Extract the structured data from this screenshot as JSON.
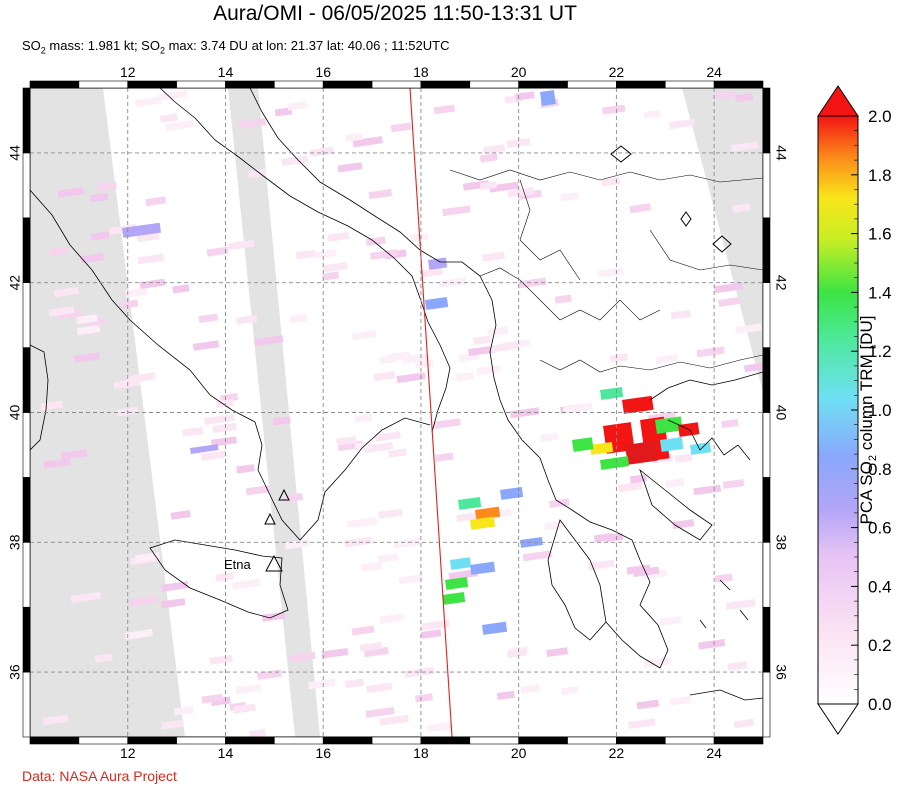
{
  "header": {
    "title": "Aura/OMI - 06/05/2025 11:50-13:31 UT",
    "subtitle_pre": "SO",
    "subtitle_sub": "2",
    "subtitle_mid": " mass: 1.981 kt; SO",
    "subtitle_sub2": "2",
    "subtitle_post": " max: 3.74 DU at lon: 21.37 lat: 40.06 ; 11:52UTC"
  },
  "map": {
    "lon_ticks": [
      "12",
      "14",
      "16",
      "18",
      "20",
      "22",
      "24"
    ],
    "lat_ticks": [
      "36",
      "38",
      "40",
      "42",
      "44"
    ],
    "lon_range": [
      10,
      25
    ],
    "lat_range": [
      35,
      45
    ],
    "volcano_label": "Etna",
    "colors": {
      "land_gap": "#e3e3e3",
      "swath_edge": "#e02020",
      "coast": "#000000",
      "grid": "#8a8a8a"
    }
  },
  "colorbar": {
    "ticks": [
      "0.0",
      "0.2",
      "0.4",
      "0.6",
      "0.8",
      "1.0",
      "1.2",
      "1.4",
      "1.6",
      "1.8",
      "2.0"
    ],
    "label_pre": "PCA SO",
    "label_sub": "2",
    "label_post": " column TRM [DU]",
    "range": [
      0,
      2
    ]
  },
  "credit": "Data: NASA Aura Project"
}
